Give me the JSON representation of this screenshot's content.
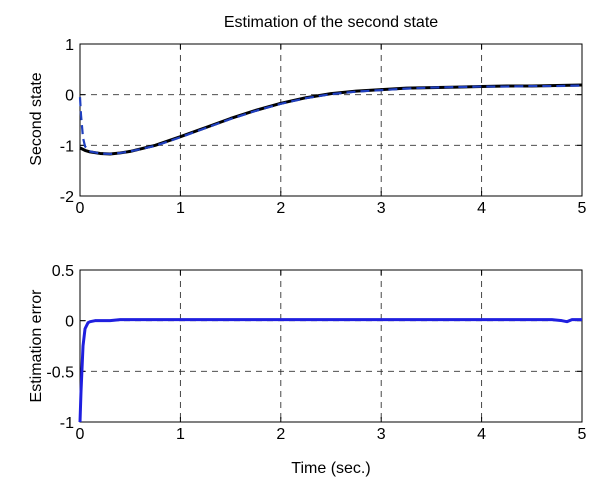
{
  "chart_data": [
    {
      "type": "line",
      "title": "Estimation of the second state",
      "xlabel": "",
      "ylabel": "Second state",
      "xlim": [
        0,
        5
      ],
      "ylim": [
        -2,
        1
      ],
      "xticks": [
        0,
        1,
        2,
        3,
        4,
        5
      ],
      "yticks": [
        -2,
        -1,
        0,
        1
      ],
      "xtick_labels": [
        "0",
        "1",
        "2",
        "3",
        "4",
        "5"
      ],
      "ytick_labels": [
        "-2",
        "-1",
        "0",
        "1"
      ],
      "grid": true,
      "series": [
        {
          "color": "#000000",
          "style": "solid",
          "x": [
            0,
            0.05,
            0.1,
            0.2,
            0.3,
            0.4,
            0.5,
            0.75,
            1.0,
            1.25,
            1.5,
            1.75,
            2.0,
            2.25,
            2.5,
            2.75,
            3.0,
            3.25,
            3.5,
            3.75,
            4.0,
            4.25,
            4.5,
            4.75,
            5.0
          ],
          "y": [
            -1.05,
            -1.1,
            -1.13,
            -1.16,
            -1.17,
            -1.15,
            -1.12,
            -1.0,
            -0.83,
            -0.65,
            -0.47,
            -0.31,
            -0.17,
            -0.06,
            0.02,
            0.07,
            0.1,
            0.13,
            0.14,
            0.15,
            0.16,
            0.17,
            0.17,
            0.18,
            0.19
          ]
        },
        {
          "color": "#1f3fbf",
          "style": "dashed",
          "x": [
            0,
            0.01,
            0.03,
            0.05,
            0.1,
            0.2,
            0.3,
            0.4,
            0.5,
            0.75,
            1.0,
            1.25,
            1.5,
            1.75,
            2.0,
            2.25,
            2.5,
            2.75,
            3.0,
            3.25,
            3.5,
            3.75,
            4.0,
            4.25,
            4.5,
            4.75,
            5.0
          ],
          "y": [
            -0.05,
            -0.4,
            -0.85,
            -1.02,
            -1.12,
            -1.16,
            -1.17,
            -1.15,
            -1.12,
            -1.01,
            -0.84,
            -0.66,
            -0.48,
            -0.32,
            -0.18,
            -0.07,
            0.01,
            0.06,
            0.09,
            0.12,
            0.14,
            0.15,
            0.16,
            0.16,
            0.17,
            0.17,
            0.18
          ]
        }
      ]
    },
    {
      "type": "line",
      "title": "",
      "xlabel": "Time (sec.)",
      "ylabel": "Estimation error",
      "xlim": [
        0,
        5
      ],
      "ylim": [
        -1,
        0.5
      ],
      "xticks": [
        0,
        1,
        2,
        3,
        4,
        5
      ],
      "yticks": [
        -1,
        -0.5,
        0,
        0.5
      ],
      "xtick_labels": [
        "0",
        "1",
        "2",
        "3",
        "4",
        "5"
      ],
      "ytick_labels": [
        "-1",
        "-0.5",
        "0",
        "0.5"
      ],
      "grid": true,
      "series": [
        {
          "color": "#1f1fdf",
          "style": "solid",
          "x": [
            0,
            0.01,
            0.03,
            0.05,
            0.08,
            0.1,
            0.15,
            0.2,
            0.3,
            0.4,
            0.5,
            1.0,
            2.0,
            3.0,
            4.0,
            4.7,
            4.8,
            4.85,
            4.9,
            5.0
          ],
          "y": [
            -1.0,
            -0.7,
            -0.25,
            -0.08,
            -0.02,
            -0.01,
            0.0,
            0.0,
            0.0,
            0.01,
            0.01,
            0.01,
            0.01,
            0.01,
            0.01,
            0.01,
            0.0,
            -0.01,
            0.01,
            0.01
          ]
        }
      ]
    }
  ]
}
